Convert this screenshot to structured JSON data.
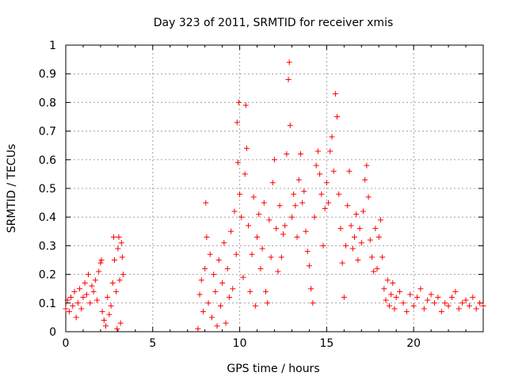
{
  "chart_data": {
    "type": "scatter",
    "title": "Day 323 of 2011, SRMTID for receiver xmis",
    "xlabel": "GPS time / hours",
    "ylabel": "SRMTID / TECUs",
    "xlim": [
      0,
      24
    ],
    "ylim": [
      0,
      1
    ],
    "x_ticks": [
      0,
      5,
      10,
      15,
      20
    ],
    "x_tick_labels": [
      "0",
      "5",
      "10",
      "15",
      "20"
    ],
    "y_ticks": [
      0,
      0.1,
      0.2,
      0.3,
      0.4,
      0.5,
      0.6,
      0.7,
      0.8,
      0.9,
      1
    ],
    "y_tick_labels": [
      "0",
      "0.1",
      "0.2",
      "0.3",
      "0.4",
      "0.5",
      "0.6",
      "0.7",
      "0.8",
      "0.9",
      "1"
    ],
    "grid": true,
    "marker": "+",
    "color": "#ff0000",
    "series": [
      {
        "name": "SRMTID",
        "points": [
          [
            0.0,
            0.08
          ],
          [
            0.1,
            0.11
          ],
          [
            0.2,
            0.07
          ],
          [
            0.3,
            0.12
          ],
          [
            0.4,
            0.09
          ],
          [
            0.5,
            0.14
          ],
          [
            0.6,
            0.05
          ],
          [
            0.7,
            0.1
          ],
          [
            0.8,
            0.15
          ],
          [
            0.9,
            0.08
          ],
          [
            1.0,
            0.12
          ],
          [
            1.1,
            0.17
          ],
          [
            1.2,
            0.13
          ],
          [
            1.3,
            0.2
          ],
          [
            1.4,
            0.1
          ],
          [
            1.5,
            0.16
          ],
          [
            1.6,
            0.14
          ],
          [
            1.7,
            0.18
          ],
          [
            1.8,
            0.11
          ],
          [
            1.9,
            0.21
          ],
          [
            2.0,
            0.24
          ],
          [
            2.05,
            0.25
          ],
          [
            2.1,
            0.07
          ],
          [
            2.2,
            0.04
          ],
          [
            2.3,
            0.02
          ],
          [
            2.4,
            0.12
          ],
          [
            2.5,
            0.06
          ],
          [
            2.6,
            0.09
          ],
          [
            2.7,
            0.17
          ],
          [
            2.75,
            0.33
          ],
          [
            2.8,
            0.25
          ],
          [
            2.9,
            0.14
          ],
          [
            2.95,
            0.01
          ],
          [
            3.0,
            0.29
          ],
          [
            3.05,
            0.33
          ],
          [
            3.1,
            0.18
          ],
          [
            3.15,
            0.03
          ],
          [
            3.2,
            0.31
          ],
          [
            3.25,
            0.26
          ],
          [
            3.3,
            0.2
          ],
          [
            7.6,
            0.01
          ],
          [
            7.7,
            0.13
          ],
          [
            7.8,
            0.18
          ],
          [
            7.9,
            0.07
          ],
          [
            8.0,
            0.22
          ],
          [
            8.05,
            0.45
          ],
          [
            8.1,
            0.33
          ],
          [
            8.2,
            0.1
          ],
          [
            8.3,
            0.27
          ],
          [
            8.4,
            0.05
          ],
          [
            8.5,
            0.2
          ],
          [
            8.6,
            0.14
          ],
          [
            8.7,
            0.02
          ],
          [
            8.8,
            0.25
          ],
          [
            8.9,
            0.09
          ],
          [
            9.0,
            0.17
          ],
          [
            9.1,
            0.31
          ],
          [
            9.2,
            0.03
          ],
          [
            9.3,
            0.22
          ],
          [
            9.4,
            0.12
          ],
          [
            9.5,
            0.35
          ],
          [
            9.6,
            0.15
          ],
          [
            9.7,
            0.42
          ],
          [
            9.8,
            0.27
          ],
          [
            9.85,
            0.73
          ],
          [
            9.9,
            0.59
          ],
          [
            9.95,
            0.8
          ],
          [
            10.0,
            0.48
          ],
          [
            10.1,
            0.4
          ],
          [
            10.2,
            0.19
          ],
          [
            10.3,
            0.55
          ],
          [
            10.35,
            0.79
          ],
          [
            10.4,
            0.64
          ],
          [
            10.5,
            0.37
          ],
          [
            10.6,
            0.14
          ],
          [
            10.7,
            0.27
          ],
          [
            10.8,
            0.47
          ],
          [
            10.9,
            0.09
          ],
          [
            11.0,
            0.33
          ],
          [
            11.1,
            0.41
          ],
          [
            11.2,
            0.22
          ],
          [
            11.3,
            0.29
          ],
          [
            11.4,
            0.45
          ],
          [
            11.5,
            0.14
          ],
          [
            11.6,
            0.1
          ],
          [
            11.7,
            0.39
          ],
          [
            11.8,
            0.26
          ],
          [
            11.9,
            0.52
          ],
          [
            12.0,
            0.6
          ],
          [
            12.1,
            0.36
          ],
          [
            12.2,
            0.21
          ],
          [
            12.3,
            0.44
          ],
          [
            12.4,
            0.26
          ],
          [
            12.5,
            0.34
          ],
          [
            12.6,
            0.37
          ],
          [
            12.7,
            0.62
          ],
          [
            12.8,
            0.88
          ],
          [
            12.85,
            0.94
          ],
          [
            12.9,
            0.72
          ],
          [
            13.0,
            0.4
          ],
          [
            13.1,
            0.48
          ],
          [
            13.2,
            0.44
          ],
          [
            13.3,
            0.33
          ],
          [
            13.4,
            0.53
          ],
          [
            13.5,
            0.62
          ],
          [
            13.6,
            0.45
          ],
          [
            13.7,
            0.49
          ],
          [
            13.8,
            0.35
          ],
          [
            13.9,
            0.28
          ],
          [
            14.0,
            0.23
          ],
          [
            14.1,
            0.15
          ],
          [
            14.2,
            0.1
          ],
          [
            14.3,
            0.4
          ],
          [
            14.4,
            0.58
          ],
          [
            14.5,
            0.63
          ],
          [
            14.6,
            0.55
          ],
          [
            14.7,
            0.48
          ],
          [
            14.8,
            0.3
          ],
          [
            14.9,
            0.43
          ],
          [
            15.0,
            0.52
          ],
          [
            15.1,
            0.45
          ],
          [
            15.2,
            0.63
          ],
          [
            15.3,
            0.68
          ],
          [
            15.4,
            0.56
          ],
          [
            15.5,
            0.83
          ],
          [
            15.6,
            0.75
          ],
          [
            15.7,
            0.48
          ],
          [
            15.8,
            0.36
          ],
          [
            15.9,
            0.24
          ],
          [
            16.0,
            0.12
          ],
          [
            16.1,
            0.3
          ],
          [
            16.2,
            0.44
          ],
          [
            16.3,
            0.56
          ],
          [
            16.4,
            0.37
          ],
          [
            16.5,
            0.29
          ],
          [
            16.6,
            0.33
          ],
          [
            16.7,
            0.41
          ],
          [
            16.8,
            0.25
          ],
          [
            16.9,
            0.36
          ],
          [
            17.0,
            0.31
          ],
          [
            17.1,
            0.42
          ],
          [
            17.2,
            0.53
          ],
          [
            17.3,
            0.58
          ],
          [
            17.4,
            0.47
          ],
          [
            17.5,
            0.32
          ],
          [
            17.6,
            0.26
          ],
          [
            17.7,
            0.21
          ],
          [
            17.8,
            0.36
          ],
          [
            17.9,
            0.22
          ],
          [
            18.0,
            0.33
          ],
          [
            18.1,
            0.39
          ],
          [
            18.2,
            0.26
          ],
          [
            18.3,
            0.15
          ],
          [
            18.4,
            0.11
          ],
          [
            18.5,
            0.18
          ],
          [
            18.6,
            0.09
          ],
          [
            18.7,
            0.13
          ],
          [
            18.8,
            0.17
          ],
          [
            18.9,
            0.08
          ],
          [
            19.0,
            0.12
          ],
          [
            19.2,
            0.14
          ],
          [
            19.4,
            0.1
          ],
          [
            19.6,
            0.07
          ],
          [
            19.8,
            0.13
          ],
          [
            20.0,
            0.09
          ],
          [
            20.2,
            0.12
          ],
          [
            20.4,
            0.15
          ],
          [
            20.6,
            0.08
          ],
          [
            20.8,
            0.11
          ],
          [
            21.0,
            0.13
          ],
          [
            21.2,
            0.1
          ],
          [
            21.4,
            0.12
          ],
          [
            21.6,
            0.07
          ],
          [
            21.8,
            0.1
          ],
          [
            22.0,
            0.09
          ],
          [
            22.2,
            0.12
          ],
          [
            22.4,
            0.14
          ],
          [
            22.6,
            0.08
          ],
          [
            22.8,
            0.1
          ],
          [
            23.0,
            0.11
          ],
          [
            23.2,
            0.09
          ],
          [
            23.4,
            0.12
          ],
          [
            23.6,
            0.08
          ],
          [
            23.8,
            0.1
          ],
          [
            24.0,
            0.09
          ]
        ]
      }
    ]
  }
}
